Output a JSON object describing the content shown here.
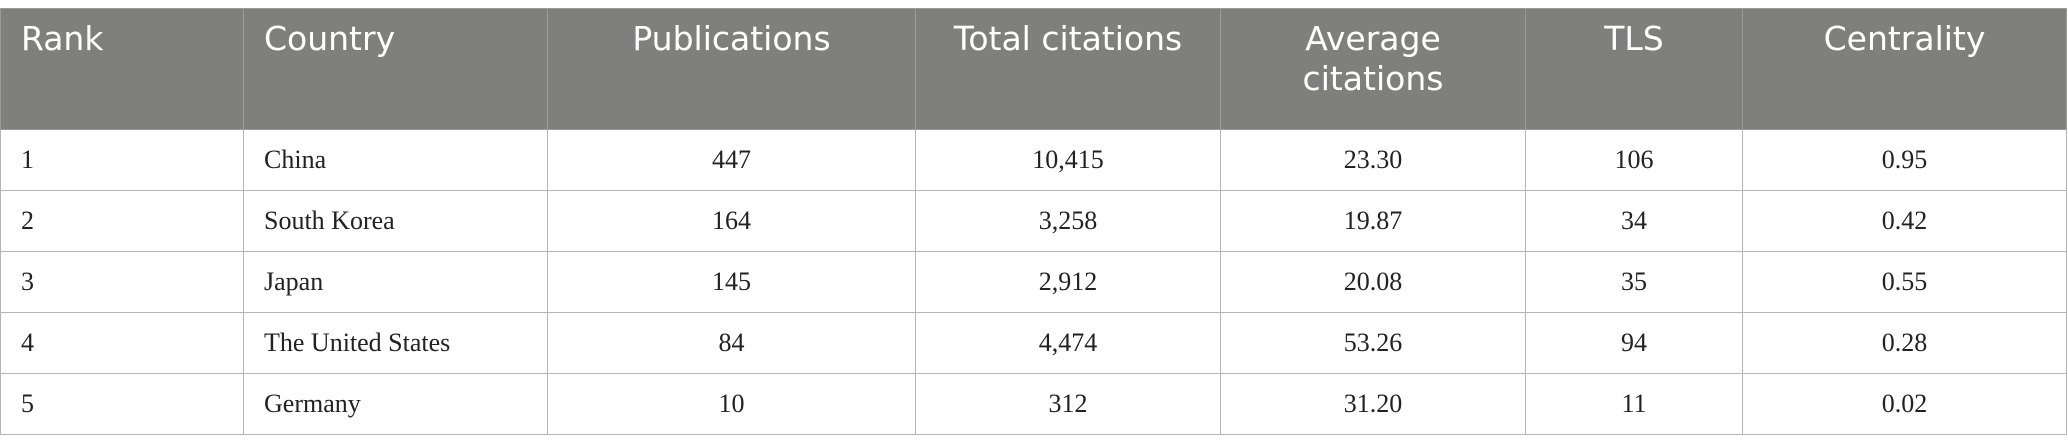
{
  "table": {
    "header": [
      "Rank",
      "Country",
      "Publications",
      "Total citations",
      "Average citations",
      "TLS",
      "Centrality"
    ],
    "rows": [
      [
        "1",
        "China",
        "447",
        "10,415",
        "23.30",
        "106",
        "0.95"
      ],
      [
        "2",
        "South Korea",
        "164",
        "3,258",
        "19.87",
        "34",
        "0.42"
      ],
      [
        "3",
        "Japan",
        "145",
        "2,912",
        "20.08",
        "35",
        "0.55"
      ],
      [
        "4",
        "The United States",
        "84",
        "4,474",
        "53.26",
        "94",
        "0.28"
      ],
      [
        "5",
        "Germany",
        "10",
        "312",
        "31.20",
        "11",
        "0.02"
      ]
    ]
  }
}
